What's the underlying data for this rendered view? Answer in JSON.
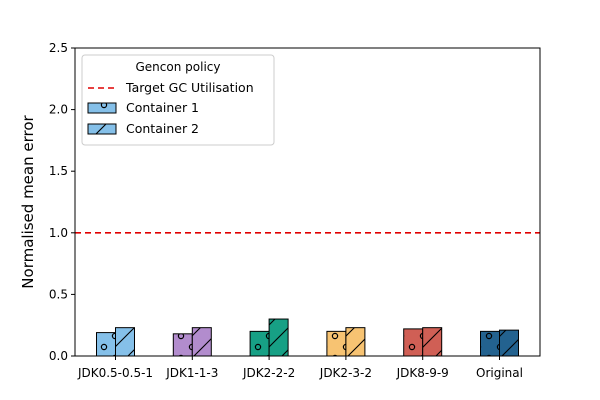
{
  "chart_data": {
    "type": "bar",
    "title": "",
    "xlabel": "",
    "ylabel": "Normalised mean error",
    "ylim": [
      0,
      2.5
    ],
    "yticks": [
      0.0,
      0.5,
      1.0,
      1.5,
      2.0,
      2.5
    ],
    "ytick_labels": [
      "0.0",
      "0.5",
      "1.0",
      "1.5",
      "2.0",
      "2.5"
    ],
    "grid": false,
    "categories": [
      "JDK0.5-0.5-1",
      "JDK1-1-3",
      "JDK2-2-2",
      "JDK2-3-2",
      "JDK8-9-9",
      "Original"
    ],
    "category_colors": [
      "#85c0e9",
      "#b28ccd",
      "#17a085",
      "#f7c372",
      "#d05f55",
      "#23628f"
    ],
    "series": [
      {
        "name": "Container 1",
        "hatch": "circles",
        "values": [
          0.19,
          0.18,
          0.2,
          0.2,
          0.22,
          0.2
        ]
      },
      {
        "name": "Container 2",
        "hatch": "diagonal",
        "values": [
          0.23,
          0.23,
          0.3,
          0.23,
          0.23,
          0.21
        ]
      }
    ],
    "reference_line": {
      "name": "Target GC Utilisation",
      "y": 1.0,
      "color": "#e00000",
      "style": "dashed"
    },
    "legend": {
      "title": "Gencon policy",
      "placement": "top-left",
      "entries": [
        "Target GC Utilisation",
        "Container 1",
        "Container 2"
      ]
    }
  }
}
